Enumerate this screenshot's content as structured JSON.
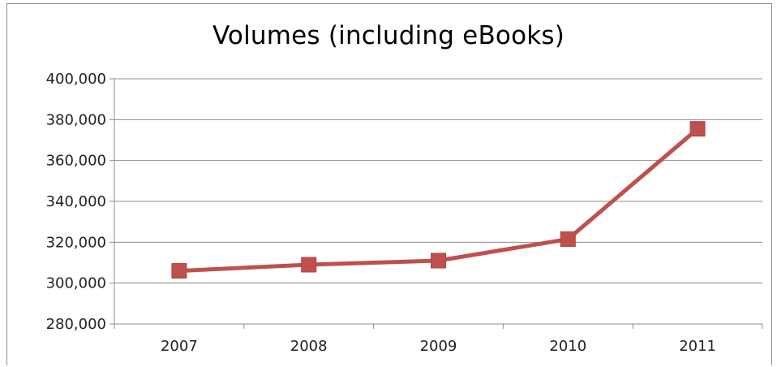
{
  "chart_data": {
    "type": "line",
    "title": "Volumes (including eBooks)",
    "xlabel": "",
    "ylabel": "",
    "categories": [
      "2007",
      "2008",
      "2009",
      "2010",
      "2011"
    ],
    "series": [
      {
        "values": [
          306000,
          309000,
          311000,
          321500,
          375500
        ],
        "color": "#c0504d",
        "marker": "square"
      }
    ],
    "ylim": [
      280000,
      400000
    ],
    "yticks": [
      280000,
      300000,
      320000,
      340000,
      360000,
      380000,
      400000
    ],
    "ytick_labels": [
      "280,000",
      "300,000",
      "320,000",
      "340,000",
      "360,000",
      "380,000",
      "400,000"
    ],
    "grid": true,
    "legend": "none"
  }
}
